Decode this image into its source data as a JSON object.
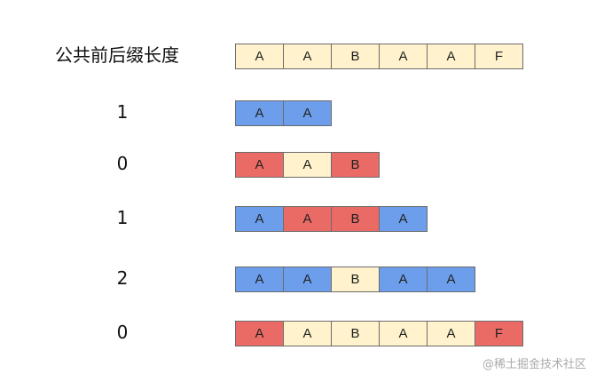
{
  "title": "公共前后缀长度",
  "colors": {
    "y": "#fff2cc",
    "b": "#6d9eeb",
    "r": "#ea6b66"
  },
  "rows": [
    {
      "label": "",
      "cells": [
        [
          "A",
          "y"
        ],
        [
          "A",
          "y"
        ],
        [
          "B",
          "y"
        ],
        [
          "A",
          "y"
        ],
        [
          "A",
          "y"
        ],
        [
          "F",
          "y"
        ]
      ]
    },
    {
      "label": "1",
      "cells": [
        [
          "A",
          "b"
        ],
        [
          "A",
          "b"
        ]
      ]
    },
    {
      "label": "0",
      "cells": [
        [
          "A",
          "r"
        ],
        [
          "A",
          "y"
        ],
        [
          "B",
          "r"
        ]
      ]
    },
    {
      "label": "1",
      "cells": [
        [
          "A",
          "b"
        ],
        [
          "A",
          "r"
        ],
        [
          "B",
          "r"
        ],
        [
          "A",
          "b"
        ]
      ]
    },
    {
      "label": "2",
      "cells": [
        [
          "A",
          "b"
        ],
        [
          "A",
          "b"
        ],
        [
          "B",
          "y"
        ],
        [
          "A",
          "b"
        ],
        [
          "A",
          "b"
        ]
      ]
    },
    {
      "label": "0",
      "cells": [
        [
          "A",
          "r"
        ],
        [
          "A",
          "y"
        ],
        [
          "B",
          "y"
        ],
        [
          "A",
          "y"
        ],
        [
          "A",
          "y"
        ],
        [
          "F",
          "r"
        ]
      ]
    }
  ],
  "watermark": "@稀土掘金技术社区"
}
